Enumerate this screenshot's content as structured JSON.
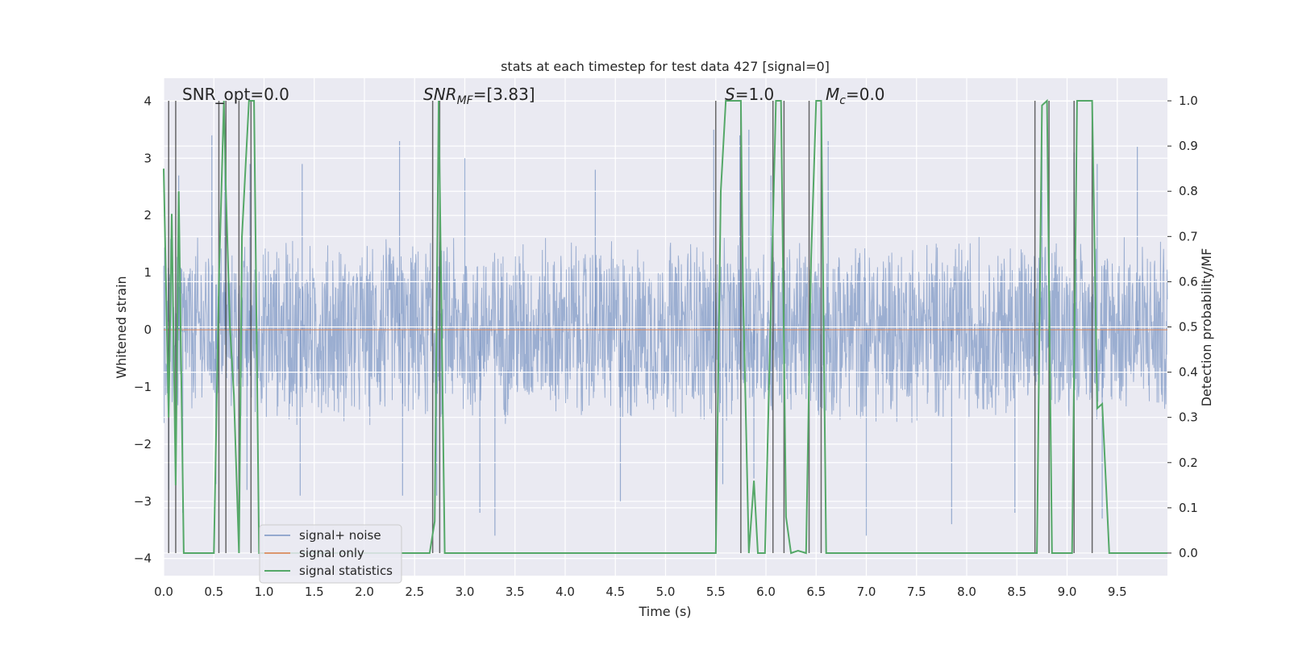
{
  "chart_data": {
    "type": "line",
    "title": "stats at each timestep for test data 427 [signal=0]",
    "xlabel": "Time (s)",
    "ylabel_left": "Whitened strain",
    "ylabel_right": "Detection probability/MF",
    "xlim": [
      0.0,
      10.0
    ],
    "ylim_left": [
      -4.3,
      4.4
    ],
    "ylim_right": [
      -0.05,
      1.05
    ],
    "xticks": [
      "0.0",
      "0.5",
      "1.0",
      "1.5",
      "2.0",
      "2.5",
      "3.0",
      "3.5",
      "4.0",
      "4.5",
      "5.0",
      "5.5",
      "6.0",
      "6.5",
      "7.0",
      "7.5",
      "8.0",
      "8.5",
      "9.0",
      "9.5"
    ],
    "yticks_left": [
      "4",
      "3",
      "2",
      "1",
      "0",
      "−1",
      "−2",
      "−3",
      "−4"
    ],
    "yticks_right": [
      "1.0",
      "0.9",
      "0.8",
      "0.7",
      "0.6",
      "0.5",
      "0.4",
      "0.3",
      "0.2",
      "0.1",
      "0.0"
    ],
    "grid": true,
    "legend_position": "lower-left",
    "series": [
      {
        "name": "signal+ noise",
        "color": "#4c72b0",
        "axis": "left",
        "kind": "noise",
        "band": [
          -1.7,
          1.7
        ],
        "peaks": [
          [
            0.05,
            -2.8
          ],
          [
            0.15,
            2.7
          ],
          [
            0.19,
            -3.2
          ],
          [
            0.48,
            3.4
          ],
          [
            0.52,
            -2.7
          ],
          [
            0.61,
            3.3
          ],
          [
            0.83,
            -2.8
          ],
          [
            0.86,
            2.9
          ],
          [
            1.38,
            2.9
          ],
          [
            1.36,
            -2.9
          ],
          [
            2.35,
            3.3
          ],
          [
            2.38,
            -2.9
          ],
          [
            2.72,
            -2.9
          ],
          [
            3.0,
            3.0
          ],
          [
            3.15,
            -3.2
          ],
          [
            3.3,
            -3.6
          ],
          [
            4.3,
            2.8
          ],
          [
            4.55,
            -3.0
          ],
          [
            5.48,
            3.5
          ],
          [
            5.57,
            -2.7
          ],
          [
            5.74,
            3.4
          ],
          [
            5.83,
            3.5
          ],
          [
            5.88,
            -2.6
          ],
          [
            6.05,
            2.7
          ],
          [
            6.62,
            3.3
          ],
          [
            7.0,
            -3.6
          ],
          [
            7.85,
            -3.4
          ],
          [
            8.48,
            -3.2
          ],
          [
            8.75,
            3.5
          ],
          [
            9.07,
            3.1
          ],
          [
            9.3,
            2.9
          ],
          [
            9.35,
            -3.3
          ],
          [
            9.7,
            3.2
          ]
        ]
      },
      {
        "name": "signal only",
        "color": "#dd8452",
        "axis": "left",
        "x": [
          0.0,
          10.0
        ],
        "y": [
          0.0,
          0.0
        ]
      },
      {
        "name": "signal statistics",
        "color": "#55a868",
        "axis": "right",
        "x": [
          0.0,
          0.05,
          0.08,
          0.12,
          0.15,
          0.2,
          0.5,
          0.55,
          0.6,
          0.62,
          0.66,
          0.7,
          0.75,
          0.78,
          0.85,
          0.9,
          0.95,
          2.65,
          2.7,
          2.74,
          2.8,
          5.5,
          5.55,
          5.6,
          5.75,
          5.77,
          5.83,
          5.88,
          5.92,
          5.99,
          6.1,
          6.15,
          6.2,
          6.25,
          6.32,
          6.4,
          6.45,
          6.5,
          6.55,
          6.6,
          8.7,
          8.75,
          8.8,
          8.85,
          9.05,
          9.1,
          9.15,
          9.25,
          9.3,
          9.35,
          9.42,
          10.0
        ],
        "y": [
          0.85,
          0.3,
          0.75,
          0.15,
          0.8,
          0.0,
          0.0,
          0.6,
          1.0,
          0.8,
          0.5,
          0.35,
          0.0,
          0.7,
          1.0,
          1.0,
          0.0,
          0.0,
          0.07,
          1.0,
          0.0,
          0.0,
          0.8,
          1.0,
          1.0,
          0.6,
          0.0,
          0.16,
          0.0,
          0.0,
          1.0,
          1.0,
          0.08,
          0.0,
          0.005,
          0.0,
          0.65,
          1.0,
          1.0,
          0.0,
          0.0,
          0.99,
          1.0,
          0.0,
          0.0,
          1.0,
          1.0,
          1.0,
          0.32,
          0.33,
          0.0,
          0.0
        ]
      }
    ],
    "vlines": [
      0.05,
      0.12,
      0.55,
      0.62,
      0.75,
      0.87,
      2.68,
      2.75,
      5.5,
      5.75,
      6.07,
      6.18,
      6.43,
      6.55,
      8.68,
      8.82,
      9.07,
      9.25
    ],
    "annotations": {
      "snr_opt": "SNR_opt=0.0",
      "snr_mf_prefix": "SNR",
      "snr_mf_sub": "MF",
      "snr_mf_value": "=[3.83]",
      "s_prefix": "S",
      "s_value": "=1.0",
      "mc_prefix": "M",
      "mc_sub": "c",
      "mc_value": "=0.0"
    }
  }
}
